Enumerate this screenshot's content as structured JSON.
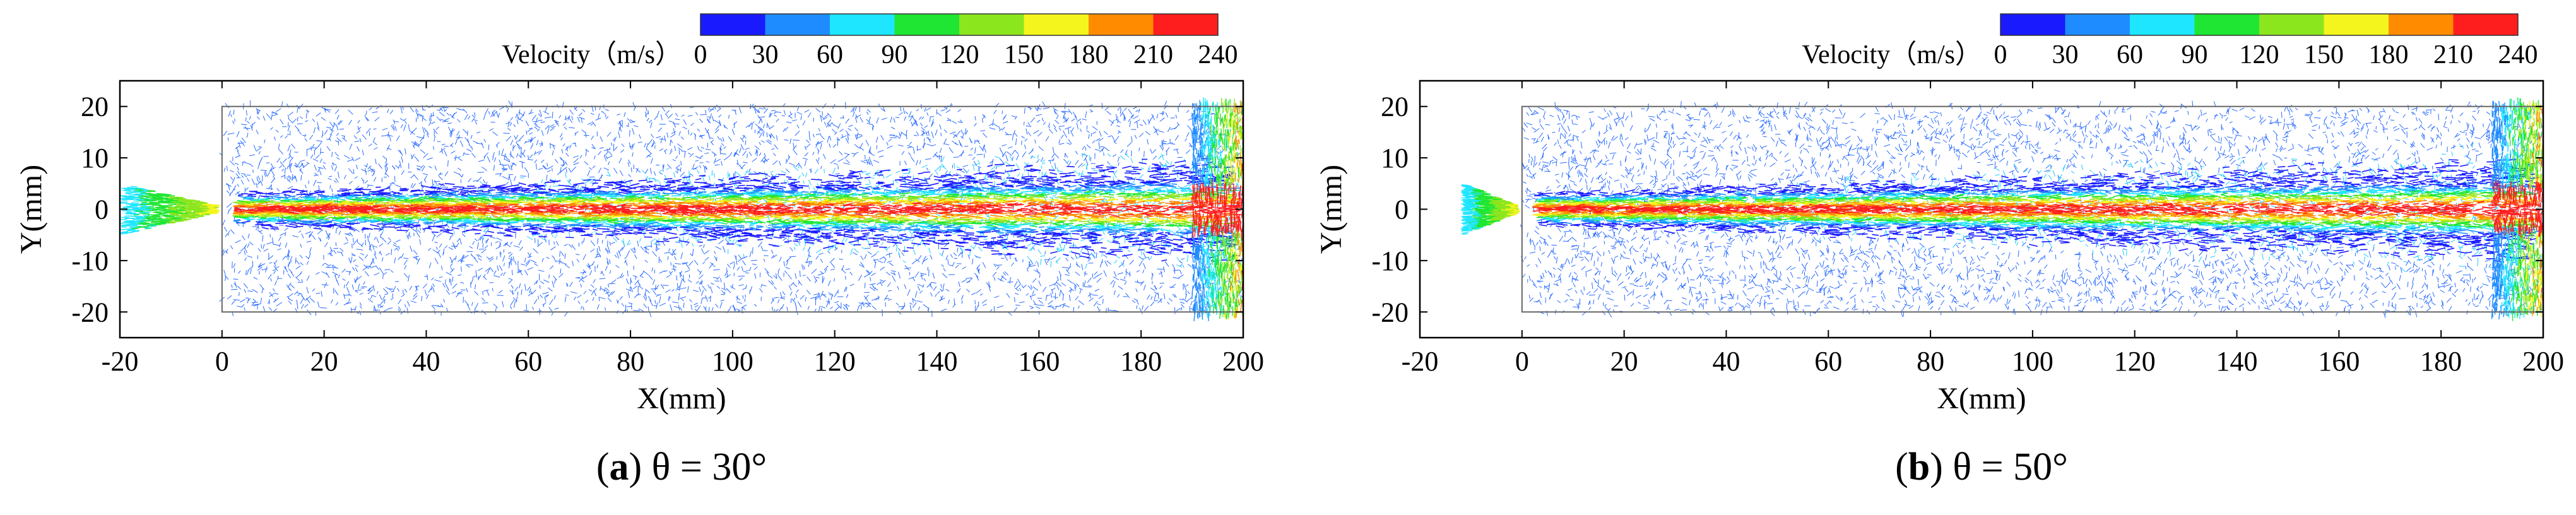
{
  "chart_data": [
    {
      "type": "vector-field",
      "caption_letter": "a",
      "caption_text": "θ = 30°",
      "xlabel": "X(mm)",
      "ylabel": "Y(mm)",
      "xlim": [
        -20,
        200
      ],
      "ylim": [
        -25,
        25
      ],
      "xticks": [
        -20,
        0,
        20,
        40,
        60,
        80,
        100,
        120,
        140,
        160,
        180,
        200
      ],
      "yticks": [
        -20,
        -10,
        0,
        10,
        20
      ],
      "domain": {
        "x": [
          0,
          200
        ],
        "y": [
          -20,
          20
        ]
      },
      "nozzle": {
        "x_inlet": -20,
        "inlet_half_width": 5,
        "x_throat": -2,
        "throat_half_width": 0.8
      },
      "colorbar": {
        "title": "Velocity（m/s）",
        "ticks": [
          0,
          30,
          60,
          90,
          120,
          150,
          180,
          210,
          240
        ],
        "colors": [
          "#1a1aff",
          "#1e8cff",
          "#1ee6ff",
          "#1ee632",
          "#8ce61e",
          "#f5f51e",
          "#ff8c00",
          "#ff1e1e"
        ]
      },
      "jet_core_velocity": 240,
      "jet_half_width_start": 1.5,
      "jet_half_width_end": 3
    },
    {
      "type": "vector-field",
      "caption_letter": "b",
      "caption_text": "θ = 50°",
      "xlabel": "X(mm)",
      "ylabel": "Y(mm)",
      "xlim": [
        -20,
        200
      ],
      "ylim": [
        -25,
        25
      ],
      "xticks": [
        -20,
        0,
        20,
        40,
        60,
        80,
        100,
        120,
        140,
        160,
        180,
        200
      ],
      "yticks": [
        -20,
        -10,
        0,
        10,
        20
      ],
      "domain": {
        "x": [
          0,
          200
        ],
        "y": [
          -20,
          20
        ]
      },
      "nozzle": {
        "x_inlet": -12,
        "inlet_half_width": 5,
        "x_throat": -2,
        "throat_half_width": 0.8
      },
      "colorbar": {
        "title": "Velocity（m/s）",
        "ticks": [
          0,
          30,
          60,
          90,
          120,
          150,
          180,
          210,
          240
        ],
        "colors": [
          "#1a1aff",
          "#1e8cff",
          "#1ee6ff",
          "#1ee632",
          "#8ce61e",
          "#f5f51e",
          "#ff8c00",
          "#ff1e1e"
        ]
      },
      "jet_core_velocity": 240,
      "jet_half_width_start": 1.5,
      "jet_half_width_end": 3
    }
  ]
}
